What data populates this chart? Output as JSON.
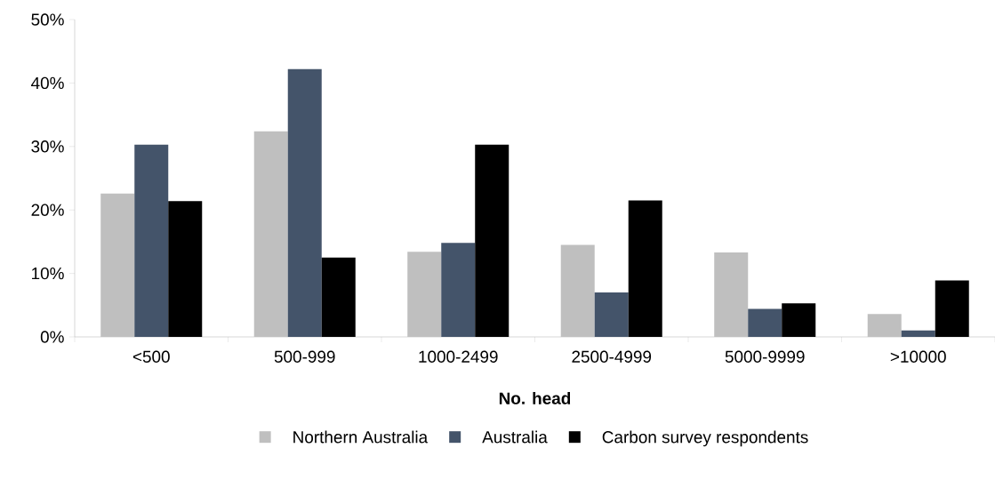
{
  "chart_data": {
    "type": "bar",
    "xlabel": "No. head",
    "categories": [
      "<500",
      "500-999",
      "1000-2499",
      "2500-4999",
      "5000-9999",
      ">10000"
    ],
    "series": [
      {
        "name": "Northern Australia",
        "color": "#bfbfbf",
        "values": [
          22.6,
          32.4,
          13.4,
          14.5,
          13.3,
          3.6
        ]
      },
      {
        "name": "Australia",
        "color": "#44546a",
        "values": [
          30.3,
          42.2,
          14.8,
          7.0,
          4.4,
          1.0
        ]
      },
      {
        "name": "Carbon survey respondents",
        "color": "#000000",
        "values": [
          21.4,
          12.5,
          30.3,
          21.5,
          5.3,
          8.9
        ]
      }
    ],
    "ylim": [
      0,
      50
    ],
    "yticks": [
      {
        "value": 0,
        "label": "0%"
      },
      {
        "value": 10,
        "label": "10%"
      },
      {
        "value": 20,
        "label": "20%"
      },
      {
        "value": 30,
        "label": "30%"
      },
      {
        "value": 40,
        "label": "40%"
      },
      {
        "value": 50,
        "label": "50%"
      }
    ],
    "grid": false,
    "legend": "bottom"
  }
}
